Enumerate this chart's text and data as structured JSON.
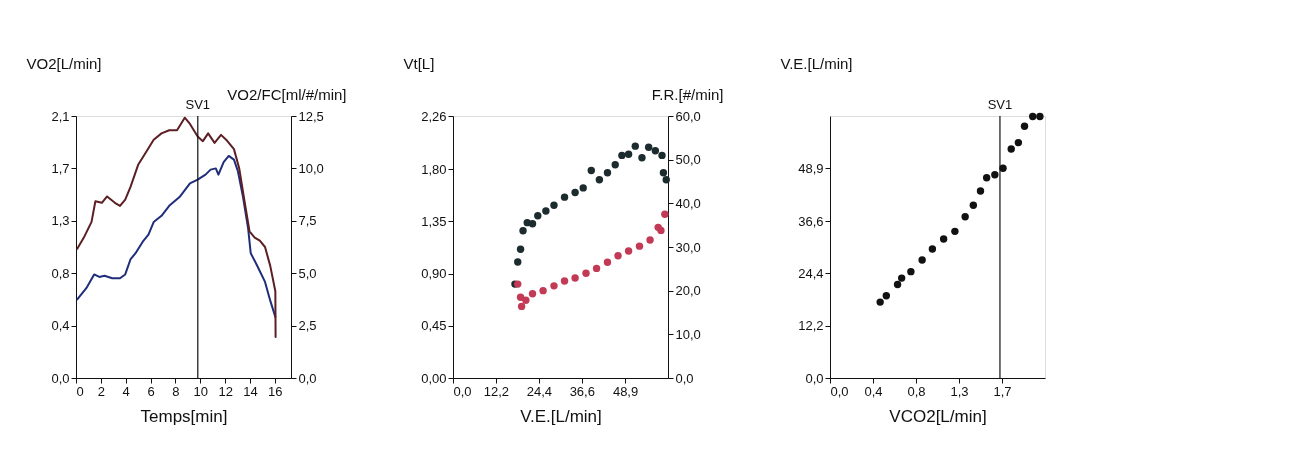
{
  "chart_data": [
    {
      "type": "line",
      "xlabel": "Temps[min]",
      "ylabel": "VO2[L/min]",
      "y2label": "VO2/FC[ml/#/min]",
      "xlim": [
        0,
        17.3
      ],
      "xticks": [
        0,
        2,
        4,
        6,
        8,
        10,
        12,
        14,
        16
      ],
      "ylim": [
        0,
        2.1
      ],
      "yticks": [
        {
          "value": 0,
          "label": "0,0"
        },
        {
          "value": 0.42,
          "label": "0,4"
        },
        {
          "value": 0.84,
          "label": "0,8"
        },
        {
          "value": 1.26,
          "label": "1,3"
        },
        {
          "value": 1.68,
          "label": "1,7"
        },
        {
          "value": 2.1,
          "label": "2,1"
        }
      ],
      "y2lim": [
        0,
        12.5
      ],
      "y2ticks": [
        {
          "value": 0,
          "label": "0,0"
        },
        {
          "value": 2.5,
          "label": "2,5"
        },
        {
          "value": 5,
          "label": "5,0"
        },
        {
          "value": 7.5,
          "label": "7,5"
        },
        {
          "value": 10,
          "label": "10,0"
        },
        {
          "value": 12.5,
          "label": "12,5"
        }
      ],
      "grid": false,
      "ref_lines": [
        {
          "axis": "x",
          "value": 9.8,
          "label": "SV1",
          "color": "#111111"
        }
      ],
      "series": [
        {
          "color": "#1f2d7a",
          "x": [
            0.1,
            0.83,
            1.46,
            1.88,
            2.29,
            2.92,
            3.54,
            3.96,
            4.38,
            4.79,
            5.42,
            5.83,
            6.25,
            6.88,
            7.5,
            8.33,
            9.17,
            9.79,
            10.42,
            10.83,
            11.25,
            11.46,
            11.88,
            12.29,
            12.71,
            13.02,
            13.44,
            13.85,
            14.06,
            14.58,
            15.21,
            15.63,
            16.04
          ],
          "values": [
            0.63,
            0.72,
            0.83,
            0.81,
            0.82,
            0.8,
            0.8,
            0.83,
            0.95,
            1.0,
            1.1,
            1.15,
            1.25,
            1.3,
            1.38,
            1.45,
            1.56,
            1.59,
            1.63,
            1.67,
            1.68,
            1.63,
            1.73,
            1.78,
            1.75,
            1.66,
            1.45,
            1.2,
            1.0,
            0.9,
            0.77,
            0.62,
            0.49
          ]
        },
        {
          "color": "#5b1f24",
          "axis": "y2",
          "x": [
            0.1,
            0.63,
            1.25,
            1.56,
            2.08,
            2.5,
            3.13,
            3.54,
            3.96,
            4.38,
            5.0,
            5.63,
            6.25,
            6.88,
            7.5,
            8.13,
            8.75,
            9.17,
            9.79,
            10.21,
            10.63,
            11.15,
            11.67,
            12.08,
            12.71,
            13.13,
            13.54,
            13.96,
            14.38,
            14.79,
            15.21,
            15.63,
            16.04,
            16.06
          ],
          "values": [
            6.17,
            6.7,
            7.45,
            8.43,
            8.36,
            8.66,
            8.36,
            8.21,
            8.51,
            9.11,
            10.17,
            10.77,
            11.37,
            11.67,
            11.82,
            11.82,
            12.42,
            12.12,
            11.52,
            11.3,
            11.67,
            11.22,
            11.6,
            11.37,
            10.92,
            10.01,
            8.51,
            7.0,
            6.7,
            6.55,
            6.25,
            5.35,
            4.14,
            1.96
          ]
        }
      ]
    },
    {
      "type": "scatter",
      "xlabel": "V.E.[L/min]",
      "ylabel": "Vt[L]",
      "y2label": "F.R.[#/min]",
      "xlim": [
        0,
        61.1
      ],
      "xticks": [
        {
          "value": 0,
          "label": "0,0"
        },
        {
          "value": 12.2,
          "label": "12,2"
        },
        {
          "value": 24.4,
          "label": "24,4"
        },
        {
          "value": 36.6,
          "label": "36,6"
        },
        {
          "value": 48.9,
          "label": "48,9"
        }
      ],
      "ylim": [
        0,
        2.26
      ],
      "yticks": [
        {
          "value": 0,
          "label": "0,00"
        },
        {
          "value": 0.45,
          "label": "0,45"
        },
        {
          "value": 0.9,
          "label": "0,90"
        },
        {
          "value": 1.35,
          "label": "1,35"
        },
        {
          "value": 1.8,
          "label": "1,80"
        },
        {
          "value": 2.26,
          "label": "2,26"
        }
      ],
      "y2lim": [
        0,
        60
      ],
      "y2ticks": [
        {
          "value": 0,
          "label": "0,0"
        },
        {
          "value": 10,
          "label": "10,0"
        },
        {
          "value": 20,
          "label": "20,0"
        },
        {
          "value": 30,
          "label": "30,0"
        },
        {
          "value": 40,
          "label": "40,0"
        },
        {
          "value": 50,
          "label": "50,0"
        },
        {
          "value": 60,
          "label": "60,0"
        }
      ],
      "grid": false,
      "marker": "circle",
      "series": [
        {
          "color": "#1c2b2e",
          "x": [
            17.6,
            18.4,
            19.2,
            19.9,
            21.1,
            22.6,
            24.1,
            26.4,
            28.7,
            31.7,
            34.7,
            37.0,
            39.3,
            41.6,
            43.9,
            46.1,
            48.0,
            49.9,
            51.8,
            53.7,
            55.6,
            57.5,
            59.4,
            59.8,
            60.6
          ],
          "values": [
            0.81,
            1.0,
            1.11,
            1.27,
            1.34,
            1.33,
            1.4,
            1.44,
            1.49,
            1.56,
            1.6,
            1.64,
            1.79,
            1.71,
            1.77,
            1.84,
            1.92,
            1.93,
            2.0,
            1.9,
            1.99,
            1.96,
            1.92,
            1.77,
            1.71
          ]
        },
        {
          "color": "#c23a55",
          "axis": "y2",
          "x": [
            18.4,
            19.2,
            19.5,
            20.7,
            22.6,
            25.6,
            28.7,
            31.7,
            34.7,
            37.8,
            40.8,
            43.9,
            46.9,
            49.9,
            53.0,
            56.0,
            58.3,
            59.1,
            60.2
          ],
          "values": [
            21.5,
            18.5,
            16.4,
            17.8,
            19.3,
            20.0,
            21.1,
            22.2,
            22.9,
            24.0,
            25.1,
            26.5,
            28.0,
            29.1,
            30.2,
            31.6,
            34.5,
            33.8,
            37.5
          ]
        }
      ]
    },
    {
      "type": "scatter",
      "xlabel": "VCO2[L/min]",
      "ylabel": "V.E.[L/min]",
      "xlim": [
        0,
        2.1
      ],
      "xticks": [
        {
          "value": 0,
          "label": "0,0"
        },
        {
          "value": 0.42,
          "label": "0,4"
        },
        {
          "value": 0.84,
          "label": "0,8"
        },
        {
          "value": 1.26,
          "label": "1,3"
        },
        {
          "value": 1.68,
          "label": "1,7"
        }
      ],
      "ylim": [
        0,
        61.1
      ],
      "yticks": [
        {
          "value": 0,
          "label": "0,0"
        },
        {
          "value": 12.2,
          "label": "12,2"
        },
        {
          "value": 24.4,
          "label": "24,4"
        },
        {
          "value": 36.6,
          "label": "36,6"
        },
        {
          "value": 48.9,
          "label": "48,9"
        }
      ],
      "grid": false,
      "marker": "circle",
      "ref_lines": [
        {
          "axis": "x",
          "value": 1.66,
          "label": "SV1",
          "color": "#111111"
        }
      ],
      "series": [
        {
          "color": "#111111",
          "x": [
            0.49,
            0.55,
            0.66,
            0.7,
            0.79,
            0.9,
            1.0,
            1.11,
            1.22,
            1.32,
            1.4,
            1.47,
            1.53,
            1.61,
            1.69,
            1.77,
            1.84,
            1.9,
            1.98,
            2.05
          ],
          "values": [
            17.7,
            19.2,
            21.8,
            23.3,
            24.8,
            27.5,
            30.1,
            32.4,
            34.2,
            37.6,
            40.3,
            43.6,
            46.7,
            47.4,
            48.9,
            53.4,
            54.9,
            58.7,
            61.0,
            61.0
          ]
        }
      ]
    }
  ]
}
